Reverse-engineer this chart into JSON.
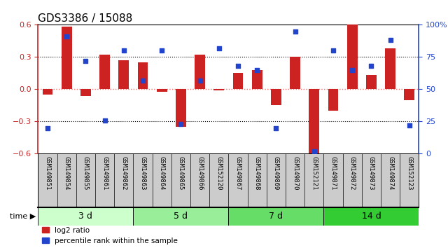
{
  "title": "GDS3386 / 15088",
  "samples": [
    "GSM149851",
    "GSM149854",
    "GSM149855",
    "GSM149861",
    "GSM149862",
    "GSM149863",
    "GSM149864",
    "GSM149865",
    "GSM149866",
    "GSM152120",
    "GSM149867",
    "GSM149868",
    "GSM149869",
    "GSM149870",
    "GSM152121",
    "GSM149871",
    "GSM149872",
    "GSM149873",
    "GSM149874",
    "GSM152123"
  ],
  "log2_ratio": [
    -0.05,
    0.58,
    -0.06,
    0.32,
    0.27,
    0.25,
    -0.02,
    -0.35,
    0.32,
    -0.01,
    0.15,
    0.18,
    -0.15,
    0.3,
    -0.62,
    -0.2,
    0.6,
    0.13,
    0.38,
    -0.1
  ],
  "percentile_rank": [
    20,
    91,
    72,
    26,
    80,
    57,
    80,
    23,
    57,
    82,
    68,
    65,
    20,
    95,
    2,
    80,
    65,
    68,
    88,
    22
  ],
  "groups": [
    {
      "label": "3 d",
      "start": 0,
      "end": 5,
      "color": "#ccffcc"
    },
    {
      "label": "5 d",
      "start": 5,
      "end": 10,
      "color": "#99ee99"
    },
    {
      "label": "7 d",
      "start": 10,
      "end": 15,
      "color": "#66dd66"
    },
    {
      "label": "14 d",
      "start": 15,
      "end": 20,
      "color": "#33cc33"
    }
  ],
  "ylim_left": [
    -0.6,
    0.6
  ],
  "ylim_right": [
    0,
    100
  ],
  "yticks_left": [
    -0.6,
    -0.3,
    0.0,
    0.3,
    0.6
  ],
  "yticks_right": [
    0,
    25,
    50,
    75,
    100
  ],
  "bar_color": "#cc2222",
  "dot_color": "#2244cc",
  "zero_line_color": "#ff6666",
  "bg_color": "#ffffff",
  "sample_area_color": "#cccccc",
  "title_fontsize": 11,
  "tick_fontsize": 6.5,
  "group_label_fontsize": 9
}
